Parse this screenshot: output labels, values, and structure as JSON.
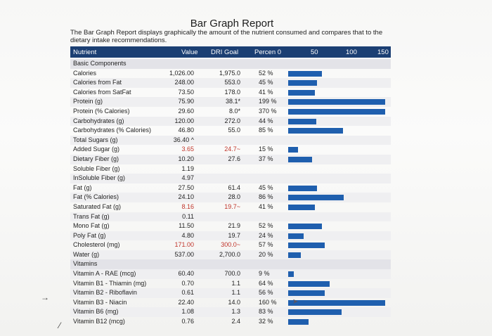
{
  "title": "Bar Graph Report",
  "intro": "The Bar Graph Report displays graphically the amount of the nutrient consumed and compares that to the dietary intake recommendations.",
  "header": {
    "nutrient": "Nutrient",
    "value": "Value",
    "dri": "DRI Goal",
    "percent": "Percen 0",
    "s50": "50",
    "s100": "100",
    "s150": "150"
  },
  "colors": {
    "header": "#1b3f73",
    "bar": "#1f5fae",
    "red": "#c0352b"
  },
  "rows": [
    {
      "name": "Basic Components",
      "type": "section"
    },
    {
      "name": "Calories",
      "value": "1,026.00",
      "dri": "1,975.0",
      "pct": "52 %",
      "bar": 52
    },
    {
      "name": "Calories from Fat",
      "value": "248.00",
      "dri": "553.0",
      "pct": "45 %",
      "bar": 45
    },
    {
      "name": "Calories from SatFat",
      "value": "73.50",
      "dri": "178.0",
      "pct": "41 %",
      "bar": 41
    },
    {
      "name": "Protein (g)",
      "value": "75.90",
      "dri": "38.1*",
      "pct": "199 %",
      "bar": 150
    },
    {
      "name": "Protein (% Calories)",
      "value": "29.60",
      "dri": "8.0*",
      "pct": "370 %",
      "bar": 150
    },
    {
      "name": "Carbohydrates (g)",
      "value": "120.00",
      "dri": "272.0",
      "pct": "44 %",
      "bar": 44
    },
    {
      "name": "Carbohydrates (% Calories)",
      "value": "46.80",
      "dri": "55.0",
      "pct": "85 %",
      "bar": 85
    },
    {
      "name": "Total Sugars (g)",
      "value": "36.40 ^",
      "dri": "",
      "pct": ""
    },
    {
      "name": "Added Sugar (g)",
      "value": "3.65",
      "dri": "24.7~",
      "pct": "15 %",
      "bar": 15,
      "red": true
    },
    {
      "name": "Dietary Fiber (g)",
      "value": "10.20",
      "dri": "27.6",
      "pct": "37 %",
      "bar": 37
    },
    {
      "name": "Soluble Fiber (g)",
      "value": "1.19",
      "dri": "",
      "pct": ""
    },
    {
      "name": "InSoluble Fiber (g)",
      "value": "4.97",
      "dri": "",
      "pct": ""
    },
    {
      "name": "Fat (g)",
      "value": "27.50",
      "dri": "61.4",
      "pct": "45 %",
      "bar": 45
    },
    {
      "name": "Fat (% Calories)",
      "value": "24.10",
      "dri": "28.0",
      "pct": "86 %",
      "bar": 86
    },
    {
      "name": "Saturated Fat (g)",
      "value": "8.16",
      "dri": "19.7~",
      "pct": "41 %",
      "bar": 41,
      "red": true
    },
    {
      "name": "Trans Fat (g)",
      "value": "0.11",
      "dri": "",
      "pct": ""
    },
    {
      "name": "Mono Fat (g)",
      "value": "11.50",
      "dri": "21.9",
      "pct": "52 %",
      "bar": 52
    },
    {
      "name": "Poly Fat (g)",
      "value": "4.80",
      "dri": "19.7",
      "pct": "24 %",
      "bar": 24
    },
    {
      "name": "Cholesterol (mg)",
      "value": "171.00",
      "dri": "300.0~",
      "pct": "57 %",
      "bar": 57,
      "red": true
    },
    {
      "name": "Water (g)",
      "value": "537.00",
      "dri": "2,700.0",
      "pct": "20 %",
      "bar": 20
    },
    {
      "name": "Vitamins",
      "type": "section"
    },
    {
      "name": "Vitamin A - RAE (mcg)",
      "value": "60.40",
      "dri": "700.0",
      "pct": "9 %",
      "bar": 9
    },
    {
      "name": "Vitamin B1 - Thiamin (mg)",
      "value": "0.70",
      "dri": "1.1",
      "pct": "64 %",
      "bar": 64
    },
    {
      "name": "Vitamin B2 - Riboflavin",
      "value": "0.61",
      "dri": "1.1",
      "pct": "56 %",
      "bar": 56
    },
    {
      "name": "Vitamin B3 - Niacin",
      "value": "22.40",
      "dri": "14.0",
      "pct": "160 %",
      "bar": 150
    },
    {
      "name": "Vitamin B6 (mg)",
      "value": "1.08",
      "dri": "1.3",
      "pct": "83 %",
      "bar": 83
    },
    {
      "name": "Vitamin B12 (mcg)",
      "value": "0.76",
      "dri": "2.4",
      "pct": "32 %",
      "bar": 32
    }
  ]
}
